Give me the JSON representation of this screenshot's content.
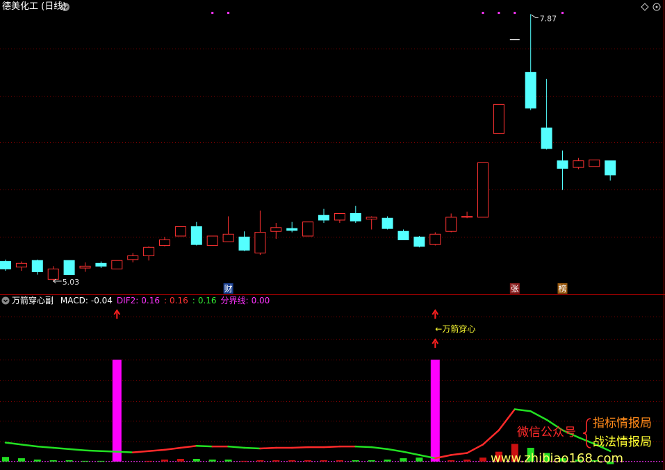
{
  "header": {
    "title": "德美化工 (日线)"
  },
  "chart_data": [
    {
      "type": "candlestick",
      "open": [
        5.24,
        5.18,
        5.25,
        5.05,
        5.25,
        5.17,
        5.22,
        5.16,
        5.26,
        5.3,
        5.41,
        5.51,
        5.61,
        5.41,
        5.45,
        5.5,
        5.33,
        5.56,
        5.59,
        5.51,
        5.73,
        5.68,
        5.75,
        5.69,
        5.7,
        5.56,
        5.5,
        5.42,
        5.56,
        5.71,
        5.71,
        6.6,
        7.6,
        7.25,
        6.66,
        6.31,
        6.24,
        6.25,
        6.31
      ],
      "high": [
        5.26,
        5.24,
        5.26,
        5.19,
        5.25,
        5.23,
        5.24,
        5.25,
        5.33,
        5.4,
        5.5,
        5.61,
        5.66,
        5.51,
        5.72,
        5.56,
        5.78,
        5.65,
        5.66,
        5.66,
        5.8,
        5.75,
        5.83,
        5.72,
        5.72,
        5.58,
        5.51,
        5.55,
        5.75,
        5.77,
        6.29,
        6.91,
        7.6,
        7.87,
        7.18,
        6.42,
        6.34,
        6.32,
        6.31
      ],
      "low": [
        5.14,
        5.14,
        5.1,
        5.03,
        5.1,
        5.13,
        5.17,
        5.16,
        5.23,
        5.25,
        5.4,
        5.51,
        5.41,
        5.41,
        5.45,
        5.35,
        5.31,
        5.48,
        5.55,
        5.51,
        5.65,
        5.65,
        5.65,
        5.58,
        5.58,
        5.47,
        5.39,
        5.41,
        5.55,
        5.7,
        5.71,
        6.6,
        7.6,
        6.85,
        6.43,
        6.0,
        6.22,
        6.25,
        6.1
      ],
      "close": [
        5.16,
        5.22,
        5.13,
        5.16,
        5.1,
        5.19,
        5.19,
        5.25,
        5.3,
        5.39,
        5.47,
        5.61,
        5.42,
        5.51,
        5.53,
        5.36,
        5.55,
        5.6,
        5.57,
        5.66,
        5.68,
        5.75,
        5.67,
        5.71,
        5.59,
        5.47,
        5.4,
        5.53,
        5.71,
        5.72,
        6.29,
        6.91,
        7.6,
        6.87,
        6.44,
        6.23,
        6.31,
        6.32,
        6.16
      ],
      "ylim": [
        4.89,
        8.02
      ],
      "up_color": "#ff3232",
      "down_color": "#54ffff",
      "flat_color": "#ffffff",
      "badges": [
        null,
        null,
        null,
        null,
        null,
        null,
        null,
        null,
        null,
        null,
        null,
        null,
        null,
        null,
        {
          "text": "财",
          "color": "#1a3f8f"
        },
        null,
        null,
        null,
        null,
        null,
        null,
        null,
        null,
        null,
        null,
        null,
        null,
        null,
        null,
        null,
        null,
        null,
        {
          "text": "张",
          "color": "#8a1f1f"
        },
        null,
        null,
        {
          "text": "榜",
          "color": "#9a5a10"
        },
        null,
        null,
        null
      ],
      "dot_indices": [
        13,
        14,
        30,
        31,
        32,
        35
      ],
      "dot_color": "#ff33ff"
    },
    {
      "type": "indicator",
      "title": "万箭穿心副",
      "legend": [
        {
          "label": "MACD:",
          "value": -0.04,
          "color": "#ffffff"
        },
        {
          "label": "DIF2:",
          "value": 0.16,
          "color": "#ff33ff"
        },
        {
          "label": ":",
          "value": 0.16,
          "color": "#ff3232"
        },
        {
          "label": ":",
          "value": 0.16,
          "color": "#33ee33"
        },
        {
          "label": "分界线:",
          "value": 0,
          "value_label": "0.00",
          "color": "#ff33ff"
        }
      ],
      "ylim": [
        -0.13,
        2.55
      ],
      "dif2": [
        0.29,
        0.26,
        0.23,
        0.21,
        0.19,
        0.17,
        0.16,
        0.15,
        0.14,
        0.16,
        0.18,
        0.21,
        0.24,
        0.23,
        0.23,
        0.21,
        0.2,
        0.21,
        0.21,
        0.22,
        0.22,
        0.23,
        0.23,
        0.22,
        0.19,
        0.15,
        0.1,
        0.05,
        0.1,
        0.13,
        0.26,
        0.48,
        0.8,
        0.77,
        0.64,
        0.48,
        0.37,
        0.27,
        0.16
      ],
      "line_up_color": "#ff2a2a",
      "line_down_color": "#22e022",
      "red_bars": [
        null,
        null,
        null,
        null,
        null,
        null,
        null,
        null,
        null,
        0.01,
        0.03,
        0.04,
        null,
        null,
        null,
        0.01,
        0.02,
        0.02,
        0.02,
        0.02,
        0.02,
        0.02,
        null,
        null,
        null,
        null,
        null,
        null,
        0.02,
        0.03,
        0.06,
        0.15,
        0.27,
        null,
        null,
        null,
        null,
        null,
        null
      ],
      "green_bars": [
        0.07,
        0.05,
        0.03,
        0.02,
        0.02,
        0.01,
        0.01,
        0.01,
        null,
        null,
        null,
        null,
        0.04,
        0.03,
        0.03,
        null,
        null,
        null,
        null,
        null,
        null,
        null,
        0.02,
        0.02,
        0.03,
        0.05,
        0.06,
        null,
        null,
        null,
        null,
        null,
        null,
        0.21,
        0.13,
        0.05,
        0.03,
        0.02,
        -0.04
      ],
      "red_bar_color": "#cc1010",
      "green_bar_color": "#22dd22",
      "signals": [
        null,
        null,
        null,
        null,
        null,
        null,
        null,
        1.56,
        null,
        null,
        null,
        null,
        null,
        null,
        null,
        null,
        null,
        null,
        null,
        null,
        null,
        null,
        null,
        null,
        null,
        null,
        null,
        1.56,
        null,
        null,
        null,
        null,
        null,
        null,
        null,
        null,
        null,
        null,
        null
      ],
      "signal_color": "#ff00ff",
      "arrow_color": "#ff2020",
      "annotation": {
        "text": "←万箭穿心",
        "index": 27,
        "color": "#ffff33"
      }
    }
  ],
  "watermark": {
    "label": "微信公众号",
    "line1": "指标情报局",
    "line2": "战法情报局",
    "url": "www.zhibiao168.com"
  }
}
